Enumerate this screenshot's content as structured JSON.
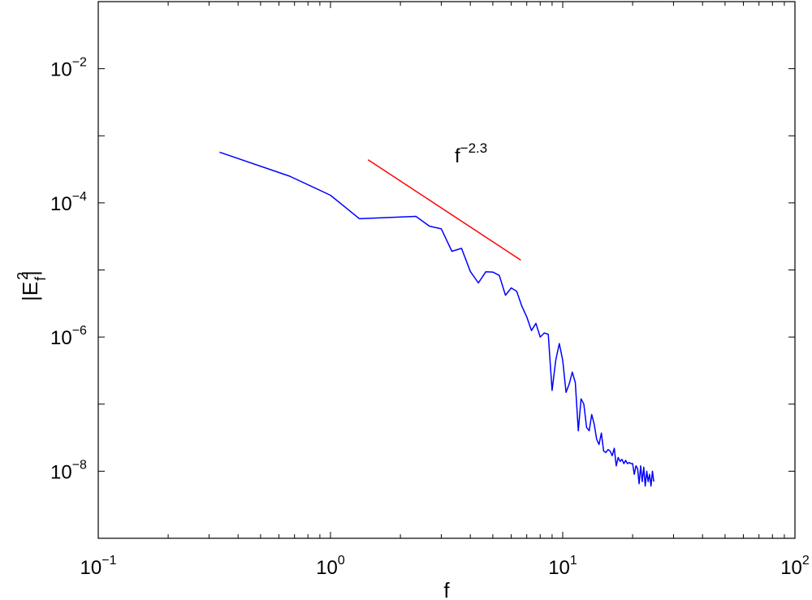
{
  "chart_data": {
    "type": "line",
    "xscale": "log",
    "yscale": "log",
    "xlim": [
      0.1,
      100
    ],
    "ylim": [
      1e-09,
      0.1
    ],
    "xticks": [
      {
        "base": "10",
        "exp": "−1"
      },
      {
        "base": "10",
        "exp": "0"
      },
      {
        "base": "10",
        "exp": "1"
      },
      {
        "base": "10",
        "exp": "2"
      }
    ],
    "yticks": [
      {
        "base": "10",
        "exp": "−2",
        "value": 0.01
      },
      {
        "base": "10",
        "exp": "−4",
        "value": 0.0001
      },
      {
        "base": "10",
        "exp": "−6",
        "value": 1e-06
      },
      {
        "base": "10",
        "exp": "−8",
        "value": 1e-08
      }
    ],
    "xlabel": "f",
    "ylabel": {
      "base": "|E",
      "sup": "2",
      "sub": "f",
      "close": "|"
    },
    "annotation": {
      "base": "f",
      "exp": "−2.3"
    },
    "grid": false,
    "series": [
      {
        "color": "#0000ff",
        "x": [
          0.333,
          0.667,
          1.0,
          1.333,
          2.333,
          2.667,
          3.0,
          3.333,
          3.667,
          4.0,
          4.333,
          4.667,
          5.0,
          5.333,
          5.667,
          6.0,
          6.333,
          6.667,
          7.0,
          7.333,
          7.667,
          8.0,
          8.333,
          8.667,
          9.0,
          9.333,
          9.667,
          10.0,
          10.333,
          10.667,
          11.0,
          11.333,
          11.667,
          12.0,
          12.333,
          12.667,
          13.0,
          13.333,
          13.667,
          14.0,
          14.333,
          14.667,
          15.0,
          15.333,
          15.667,
          16.0,
          16.333,
          16.667,
          17.0,
          17.333,
          17.667,
          18.0,
          18.333,
          18.667,
          19.0,
          19.333,
          19.667,
          20.0,
          20.333,
          20.667,
          21.0,
          21.333,
          21.667,
          22.0,
          22.333,
          22.667,
          23.0,
          23.333,
          23.667,
          24.0,
          24.333,
          24.667
        ],
        "y": [
          0.00057,
          0.00025,
          0.00013,
          5.8e-05,
          6.3e-05,
          4.5e-05,
          4.1e-05,
          1.9e-05,
          2.1e-05,
          9.5e-06,
          6.4e-06,
          9.4e-06,
          9.3e-06,
          8.3e-06,
          4.2e-06,
          5.4e-06,
          4.8e-06,
          2.9e-06,
          2e-06,
          1.25e-06,
          1.6e-06,
          1e-06,
          1.15e-06,
          1.1e-06,
          1.6e-07,
          4.5e-07,
          8e-07,
          4.5e-07,
          1.5e-07,
          2e-07,
          3e-07,
          2.1e-07,
          4e-08,
          1.2e-07,
          1e-07,
          4.5e-08,
          4e-08,
          7e-08,
          5e-08,
          3e-08,
          2.5e-08,
          3.7e-08,
          2e-08,
          1.9e-08,
          2.1e-08,
          2e-08,
          1.7e-08,
          2.2e-08,
          1.2e-08,
          1.6e-08,
          1.4e-08,
          1.5e-08,
          1.3e-08,
          1.45e-08,
          1.3e-08,
          1.35e-08,
          1.3e-08,
          1.3e-08,
          9e-09,
          1.2e-08,
          1.1e-08,
          6.5e-09,
          1.2e-08,
          7e-09,
          1.15e-08,
          6e-09,
          1e-08,
          7e-09,
          9e-09,
          6e-09,
          1e-08,
          7e-09
        ]
      },
      {
        "color": "#ff0000",
        "x": [
          1.45,
          6.6
        ],
        "y": [
          0.00044,
          1.4e-05
        ]
      }
    ]
  }
}
